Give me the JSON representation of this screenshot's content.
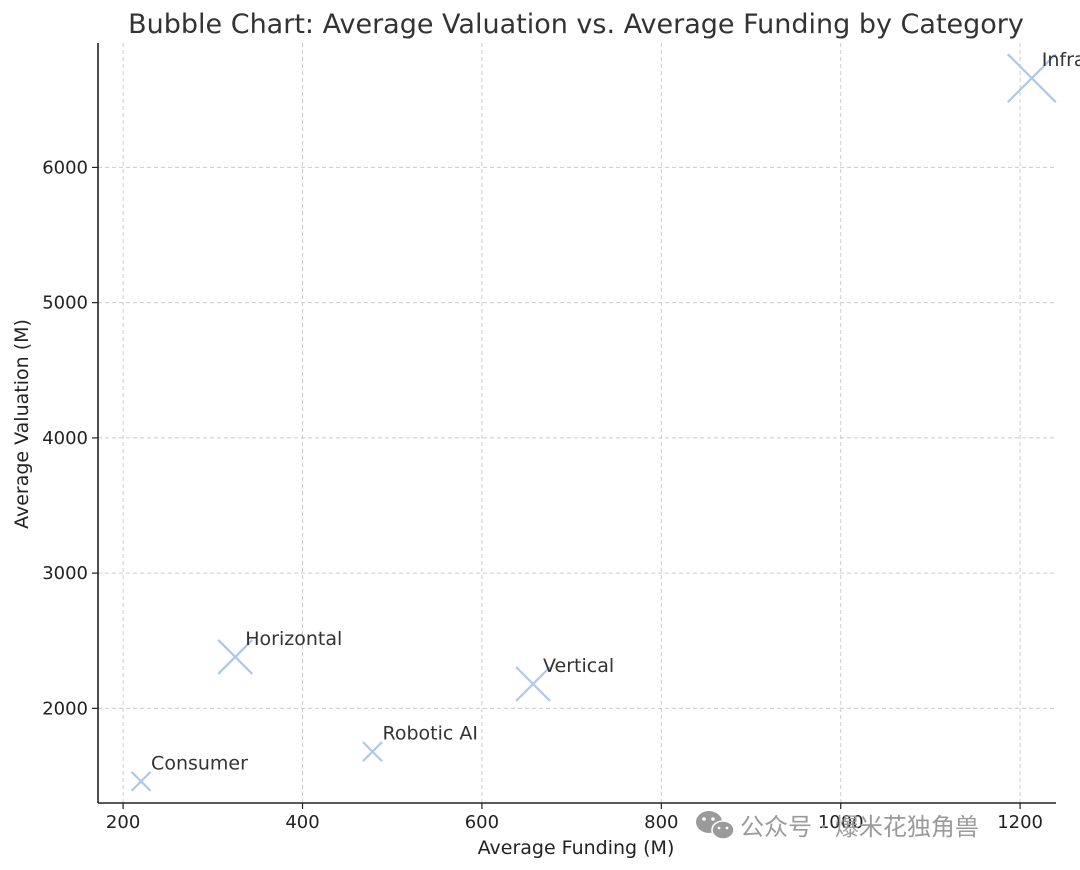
{
  "chart_data": {
    "type": "scatter",
    "title": "Bubble Chart: Average Valuation vs. Average Funding by Category",
    "xlabel": "Average Funding (M)",
    "ylabel": "Average Valuation (M)",
    "xlim": [
      172,
      1240
    ],
    "ylim": [
      1300,
      6920
    ],
    "xticks": [
      200,
      400,
      600,
      800,
      1000,
      1200
    ],
    "yticks": [
      2000,
      3000,
      4000,
      5000,
      6000
    ],
    "grid": true,
    "marker": "x",
    "color": "#aec7e8",
    "points": [
      {
        "label": "Consumer",
        "x": 220,
        "y": 1460,
        "size": 1
      },
      {
        "label": "Horizontal",
        "x": 325,
        "y": 2380,
        "size": 2
      },
      {
        "label": "Robotic AI",
        "x": 478,
        "y": 1680,
        "size": 1
      },
      {
        "label": "Vertical",
        "x": 657,
        "y": 2180,
        "size": 2
      },
      {
        "label": "Infra",
        "x": 1213,
        "y": 6660,
        "size": 3
      }
    ]
  },
  "watermark": {
    "icon": "wechat-icon",
    "text": "公众号 · 爆米花独角兽"
  }
}
